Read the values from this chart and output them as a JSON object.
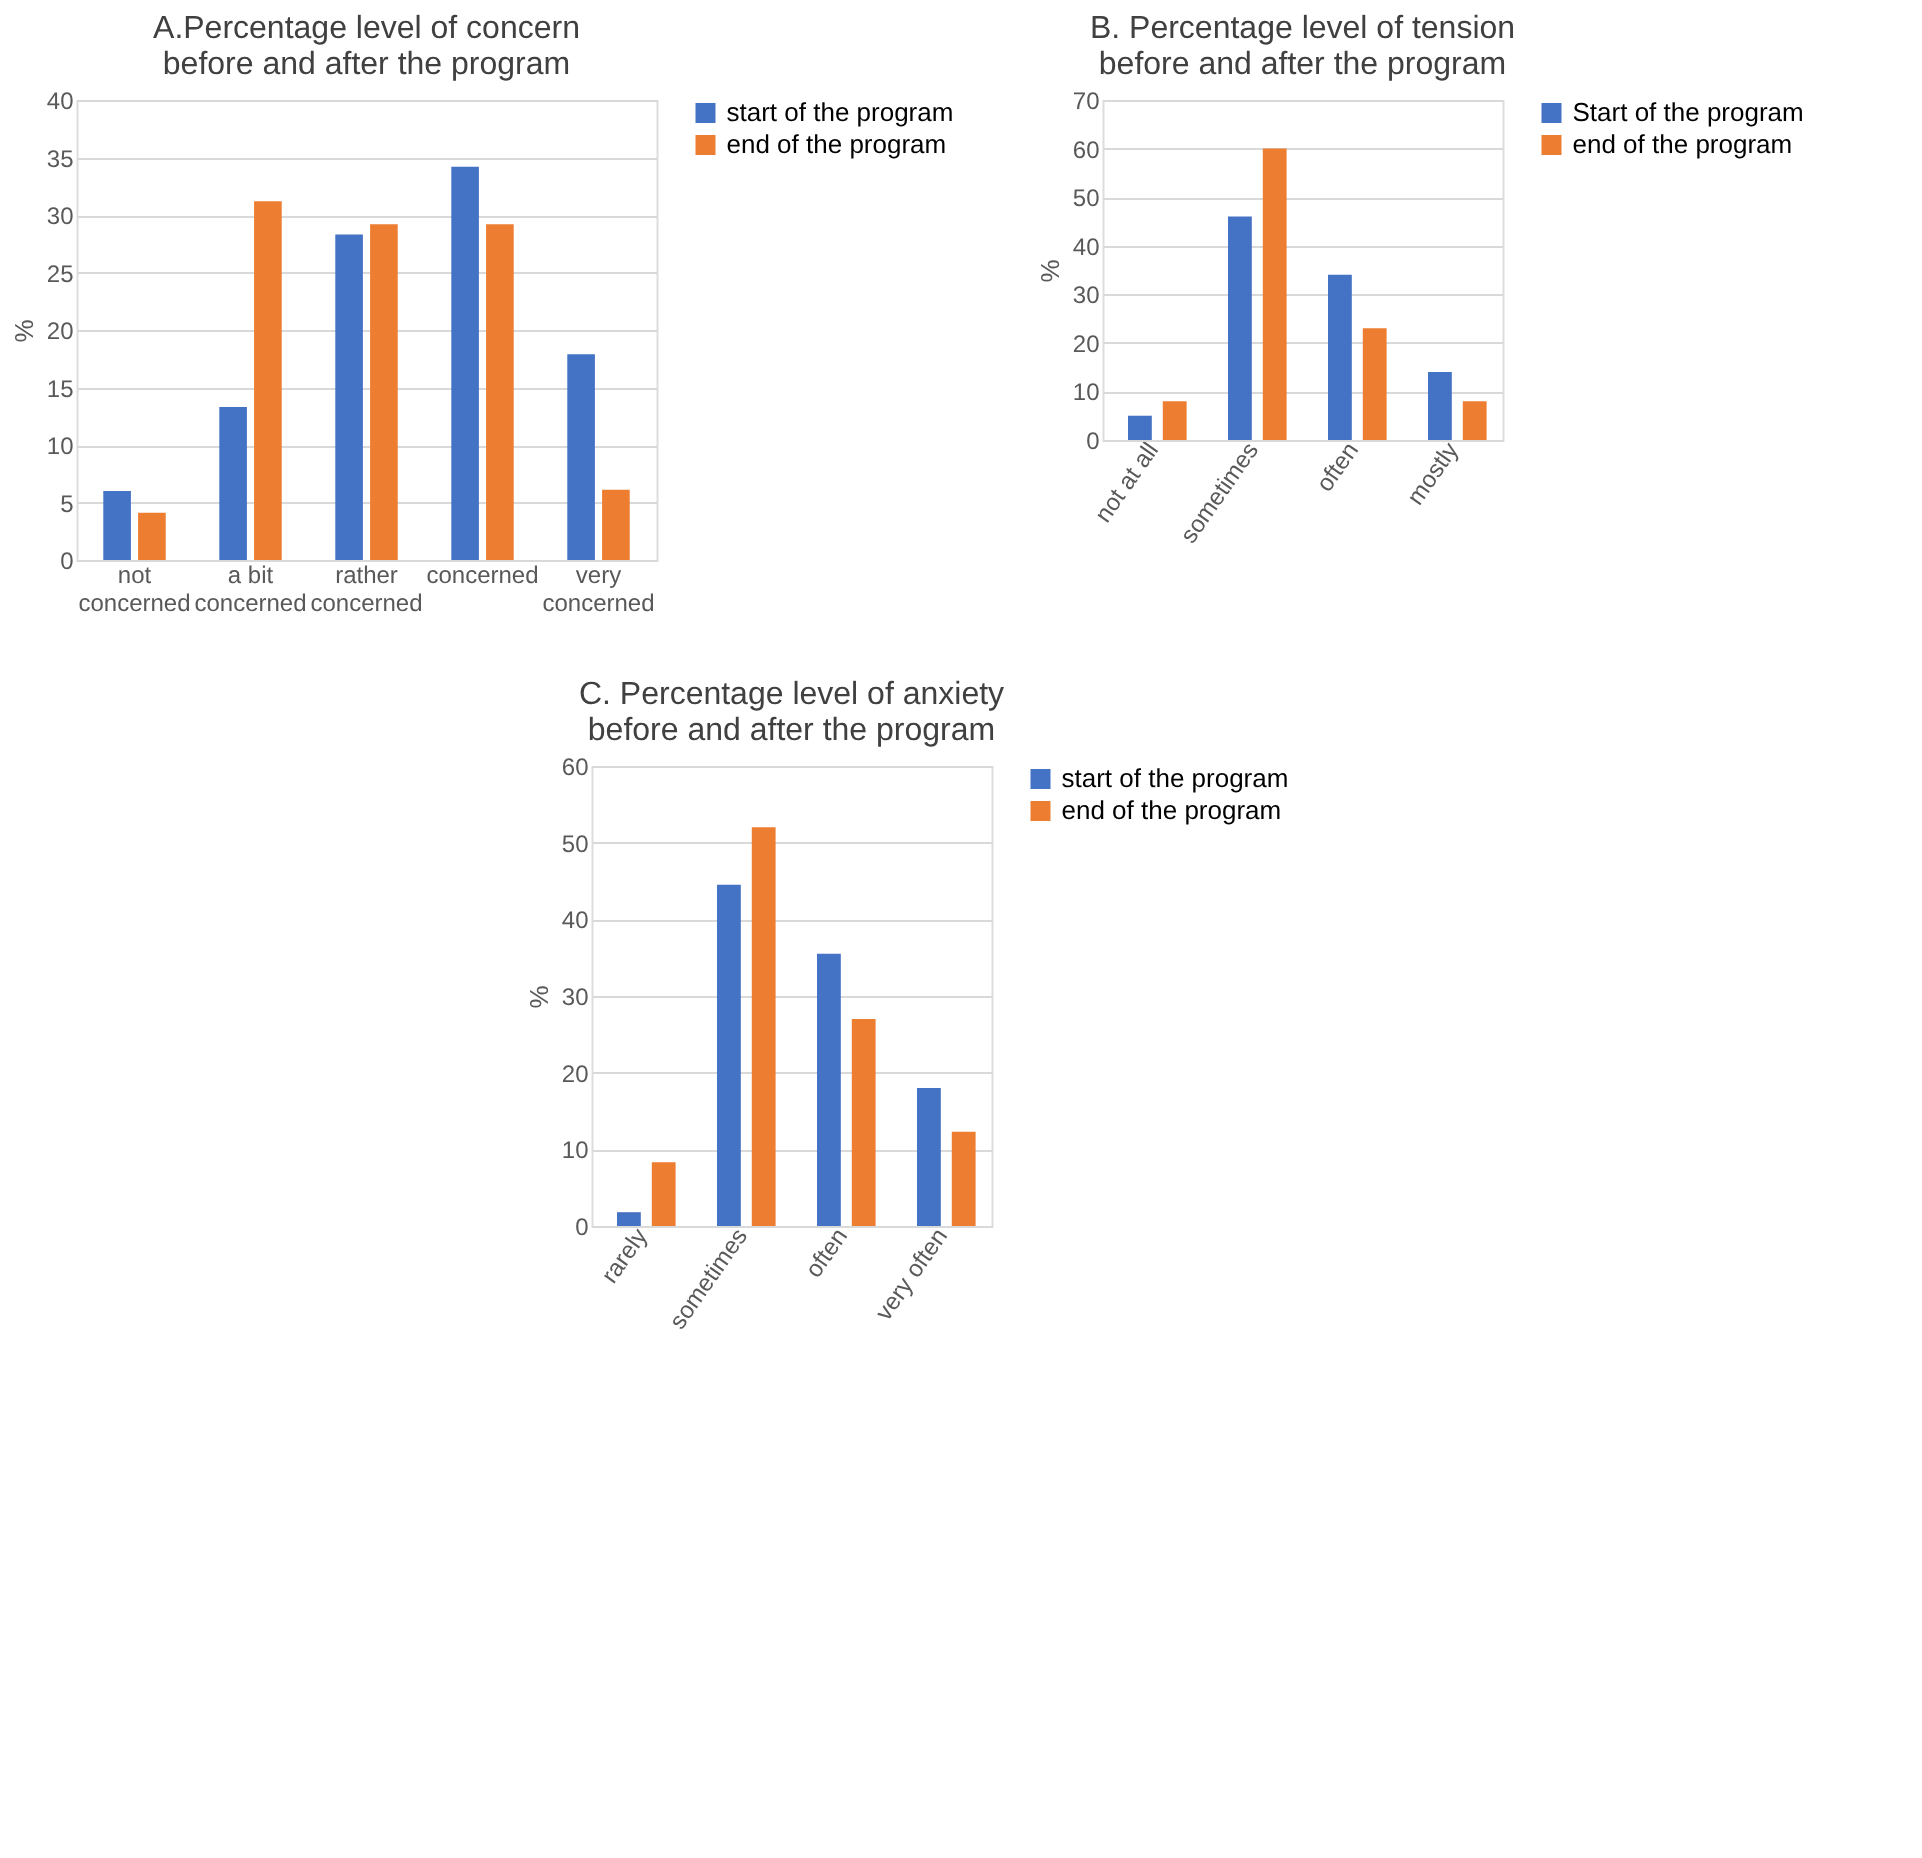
{
  "chart_data": [
    {
      "type": "bar",
      "title": "A.Percentage level of concern\nbefore and after the program",
      "ylabel": "%",
      "categories": [
        "not\nconcerned",
        "a bit\nconcerned",
        "rather\nconcerned",
        "concerned",
        "very\nconcerned"
      ],
      "ylim": [
        0,
        40
      ],
      "yticks": [
        0,
        5,
        10,
        15,
        20,
        25,
        30,
        35,
        40
      ],
      "grid": "y",
      "legend": "right",
      "series": [
        {
          "name": "start of the program",
          "color": "#4472c4",
          "values": [
            6,
            13.3,
            28.3,
            34.2,
            17.9
          ]
        },
        {
          "name": "end of the program",
          "color": "#ed7d31",
          "values": [
            4.1,
            31.2,
            29.2,
            29.2,
            6.1
          ]
        }
      ]
    },
    {
      "type": "bar",
      "title": "B. Percentage level of tension\nbefore and after the program",
      "ylabel": "%",
      "categories": [
        "not at all",
        "sometimes",
        "often",
        "mostly"
      ],
      "ylim": [
        0,
        70
      ],
      "yticks": [
        0,
        10,
        20,
        30,
        40,
        50,
        60,
        70
      ],
      "grid": "y",
      "legend": "right",
      "series": [
        {
          "name": "Start of the program",
          "color": "#4472c4",
          "values": [
            5,
            46,
            34,
            14
          ]
        },
        {
          "name": "end of the program",
          "color": "#ed7d31",
          "values": [
            8,
            60,
            23,
            8
          ]
        }
      ]
    },
    {
      "type": "bar",
      "title": "C. Percentage level of anxiety\nbefore and after the program",
      "ylabel": "%",
      "categories": [
        "rarely",
        "sometimes",
        "often",
        "very often"
      ],
      "ylim": [
        0,
        60
      ],
      "yticks": [
        0,
        10,
        20,
        30,
        40,
        50,
        60
      ],
      "grid": "y",
      "legend": "right",
      "series": [
        {
          "name": "start of the program",
          "color": "#4472c4",
          "values": [
            1.8,
            44.5,
            35.5,
            18
          ]
        },
        {
          "name": "end of the program",
          "color": "#ed7d31",
          "values": [
            8.3,
            52,
            27,
            12.3
          ]
        }
      ]
    }
  ]
}
